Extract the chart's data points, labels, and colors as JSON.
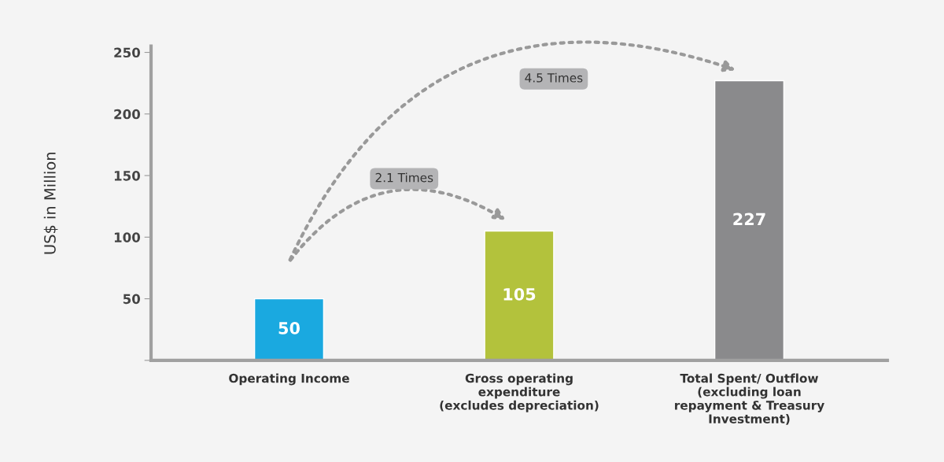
{
  "chart_data": {
    "type": "bar",
    "ylabel": "US$ in Million",
    "categories": [
      "Operating Income",
      "Gross operating\nexpenditure\n(excludes depreciation)",
      "Total Spent/ Outflow\n(excluding loan\nrepayment & Treasury\nInvestment)"
    ],
    "values": [
      50,
      105,
      227
    ],
    "colors": [
      "#1aa9e0",
      "#b3c23c",
      "#8a8a8c"
    ],
    "data_labels": true,
    "ylim": [
      0,
      255
    ],
    "yticks": [
      {
        "value": 0,
        "label": null
      },
      50,
      100,
      150,
      200,
      250
    ],
    "annotations": [
      "2.1 Times",
      "4.5 Times"
    ],
    "grid": false
  }
}
